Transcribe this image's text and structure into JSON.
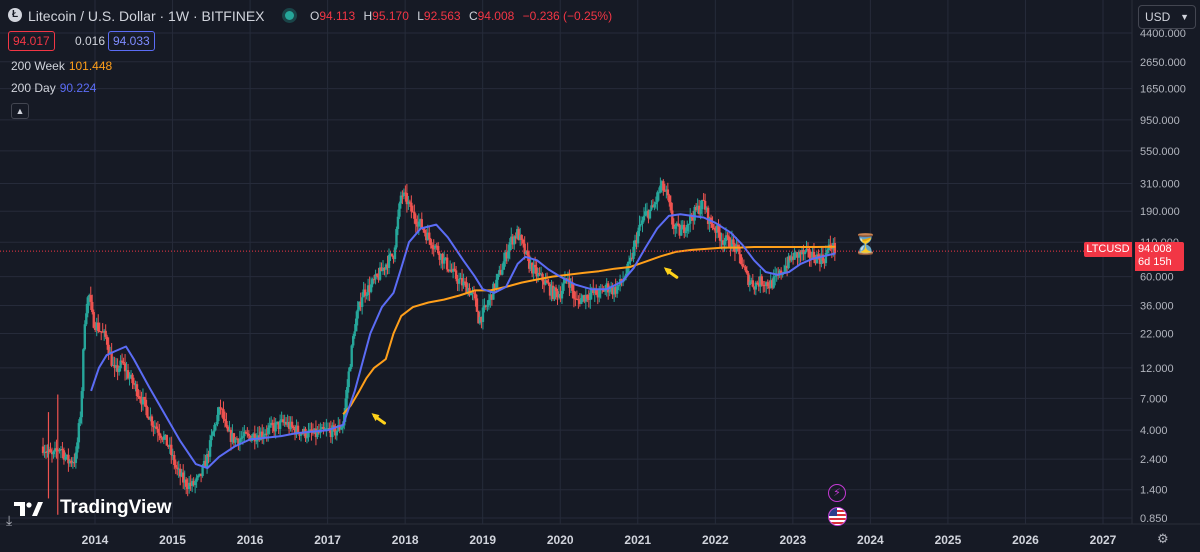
{
  "header": {
    "logo_letter": "Ł",
    "title": "Litecoin / U.S. Dollar · 1W · BITFINEX",
    "ohlc": [
      {
        "key": "O",
        "value": "94.113"
      },
      {
        "key": "H",
        "value": "95.170"
      },
      {
        "key": "L",
        "value": "92.563"
      },
      {
        "key": "C",
        "value": "94.008"
      },
      {
        "key": "",
        "value": "−0.236 (−0.25%)"
      }
    ],
    "bid": "94.017",
    "spread": "0.016",
    "ask": "94.033"
  },
  "indicators": [
    {
      "name": "200 Week",
      "value": "101.448",
      "color": "#ff9f1a"
    },
    {
      "name": "200 Day",
      "value": "90.224",
      "color": "#5b6cf5"
    }
  ],
  "currency": {
    "label": "USD"
  },
  "last_price": {
    "symbol": "LTCUSD",
    "price": "94.008",
    "countdown": "6d 15h",
    "color": "#f23645"
  },
  "brand": {
    "name": "TradingView"
  },
  "colors": {
    "background": "#161a25",
    "grid": "#262b3a",
    "up": "#26a69a",
    "down": "#ef5350",
    "ma200w": "#ff9f1a",
    "ma200d": "#5b6cf5",
    "arrow": "#ffd21a"
  },
  "chart_data": {
    "type": "candlestick",
    "y_scale": "log",
    "ylim": [
      0.72,
      5400
    ],
    "xlim": [
      2013.25,
      2027.6
    ],
    "y_ticks": [
      "4400.000",
      "2650.000",
      "1650.000",
      "950.000",
      "550.000",
      "310.000",
      "190.000",
      "110.000",
      "60.000",
      "36.000",
      "22.000",
      "12.000",
      "7.000",
      "4.000",
      "2.400",
      "1.400",
      "0.850"
    ],
    "x_ticks": [
      "2014",
      "2015",
      "2016",
      "2017",
      "2018",
      "2019",
      "2020",
      "2021",
      "2022",
      "2023",
      "2024",
      "2025",
      "2026",
      "2027"
    ],
    "price_path": [
      [
        2013.33,
        3.0
      ],
      [
        2013.45,
        2.5
      ],
      [
        2013.55,
        3.0
      ],
      [
        2013.65,
        2.3
      ],
      [
        2013.75,
        2.4
      ],
      [
        2013.82,
        6
      ],
      [
        2013.87,
        30
      ],
      [
        2013.92,
        45
      ],
      [
        2013.97,
        28
      ],
      [
        2014.05,
        24
      ],
      [
        2014.15,
        20
      ],
      [
        2014.25,
        11
      ],
      [
        2014.35,
        13
      ],
      [
        2014.45,
        10
      ],
      [
        2014.55,
        8
      ],
      [
        2014.65,
        6
      ],
      [
        2014.75,
        4.5
      ],
      [
        2014.85,
        3.8
      ],
      [
        2014.95,
        3.0
      ],
      [
        2015.05,
        2.0
      ],
      [
        2015.15,
        1.6
      ],
      [
        2015.25,
        1.5
      ],
      [
        2015.35,
        1.7
      ],
      [
        2015.45,
        2.5
      ],
      [
        2015.55,
        4.5
      ],
      [
        2015.62,
        6
      ],
      [
        2015.7,
        3.8
      ],
      [
        2015.8,
        3.4
      ],
      [
        2015.9,
        3.5
      ],
      [
        2016.0,
        3.6
      ],
      [
        2016.15,
        3.8
      ],
      [
        2016.3,
        4.2
      ],
      [
        2016.45,
        4.6
      ],
      [
        2016.55,
        4.1
      ],
      [
        2016.7,
        3.8
      ],
      [
        2016.85,
        3.7
      ],
      [
        2017.0,
        4.0
      ],
      [
        2017.1,
        3.9
      ],
      [
        2017.2,
        4.5
      ],
      [
        2017.28,
        12
      ],
      [
        2017.35,
        25
      ],
      [
        2017.45,
        45
      ],
      [
        2017.55,
        50
      ],
      [
        2017.65,
        60
      ],
      [
        2017.75,
        75
      ],
      [
        2017.85,
        90
      ],
      [
        2017.95,
        260
      ],
      [
        2018.02,
        230
      ],
      [
        2018.1,
        180
      ],
      [
        2018.2,
        150
      ],
      [
        2018.3,
        120
      ],
      [
        2018.4,
        100
      ],
      [
        2018.5,
        80
      ],
      [
        2018.6,
        65
      ],
      [
        2018.7,
        55
      ],
      [
        2018.8,
        50
      ],
      [
        2018.9,
        40
      ],
      [
        2018.95,
        28
      ],
      [
        2019.05,
        35
      ],
      [
        2019.15,
        50
      ],
      [
        2019.25,
        70
      ],
      [
        2019.35,
        110
      ],
      [
        2019.45,
        130
      ],
      [
        2019.52,
        100
      ],
      [
        2019.6,
        75
      ],
      [
        2019.7,
        62
      ],
      [
        2019.8,
        55
      ],
      [
        2019.9,
        45
      ],
      [
        2020.0,
        45
      ],
      [
        2020.1,
        60
      ],
      [
        2020.2,
        38
      ],
      [
        2020.3,
        42
      ],
      [
        2020.4,
        45
      ],
      [
        2020.5,
        44
      ],
      [
        2020.6,
        50
      ],
      [
        2020.7,
        47
      ],
      [
        2020.8,
        55
      ],
      [
        2020.9,
        75
      ],
      [
        2021.0,
        130
      ],
      [
        2021.1,
        180
      ],
      [
        2021.2,
        200
      ],
      [
        2021.3,
        300
      ],
      [
        2021.38,
        250
      ],
      [
        2021.45,
        150
      ],
      [
        2021.55,
        130
      ],
      [
        2021.65,
        160
      ],
      [
        2021.75,
        190
      ],
      [
        2021.85,
        220
      ],
      [
        2021.92,
        160
      ],
      [
        2022.0,
        140
      ],
      [
        2022.1,
        115
      ],
      [
        2022.2,
        110
      ],
      [
        2022.3,
        90
      ],
      [
        2022.4,
        60
      ],
      [
        2022.5,
        52
      ],
      [
        2022.6,
        56
      ],
      [
        2022.7,
        52
      ],
      [
        2022.8,
        58
      ],
      [
        2022.9,
        72
      ],
      [
        2023.0,
        85
      ],
      [
        2023.1,
        90
      ],
      [
        2023.2,
        88
      ],
      [
        2023.3,
        85
      ],
      [
        2023.4,
        82
      ],
      [
        2023.45,
        95
      ],
      [
        2023.5,
        105
      ],
      [
        2023.55,
        94
      ]
    ],
    "series": [
      {
        "name": "200 Week",
        "type": "line",
        "color": "#ff9f1a",
        "points": [
          [
            2017.2,
            5.3
          ],
          [
            2017.3,
            6.2
          ],
          [
            2017.4,
            7.8
          ],
          [
            2017.5,
            10
          ],
          [
            2017.6,
            12
          ],
          [
            2017.75,
            14
          ],
          [
            2017.85,
            22
          ],
          [
            2017.95,
            30
          ],
          [
            2018.1,
            35
          ],
          [
            2018.3,
            38
          ],
          [
            2018.5,
            40
          ],
          [
            2018.7,
            43
          ],
          [
            2018.9,
            47
          ],
          [
            2019.1,
            47
          ],
          [
            2019.3,
            50
          ],
          [
            2019.5,
            54
          ],
          [
            2019.7,
            57
          ],
          [
            2019.9,
            60
          ],
          [
            2020.1,
            62
          ],
          [
            2020.3,
            64
          ],
          [
            2020.5,
            66
          ],
          [
            2020.7,
            69
          ],
          [
            2020.9,
            71
          ],
          [
            2021.1,
            78
          ],
          [
            2021.3,
            86
          ],
          [
            2021.5,
            93
          ],
          [
            2021.7,
            96
          ],
          [
            2021.9,
            98
          ],
          [
            2022.1,
            100
          ],
          [
            2022.3,
            100
          ],
          [
            2022.5,
            101
          ],
          [
            2022.7,
            101
          ],
          [
            2022.9,
            101
          ],
          [
            2023.1,
            101
          ],
          [
            2023.3,
            101
          ],
          [
            2023.55,
            101.448
          ]
        ]
      },
      {
        "name": "200 Day",
        "type": "line",
        "color": "#5b6cf5",
        "points": [
          [
            2013.95,
            8
          ],
          [
            2014.05,
            12
          ],
          [
            2014.15,
            15
          ],
          [
            2014.25,
            16
          ],
          [
            2014.4,
            17.5
          ],
          [
            2014.5,
            14
          ],
          [
            2014.7,
            8.5
          ],
          [
            2014.9,
            5.3
          ],
          [
            2015.1,
            3.3
          ],
          [
            2015.3,
            2.2
          ],
          [
            2015.45,
            2.05
          ],
          [
            2015.6,
            2.5
          ],
          [
            2015.8,
            3.0
          ],
          [
            2016.0,
            3.4
          ],
          [
            2016.2,
            3.5
          ],
          [
            2016.4,
            3.6
          ],
          [
            2016.6,
            3.8
          ],
          [
            2016.8,
            3.9
          ],
          [
            2017.0,
            4.0
          ],
          [
            2017.2,
            4.4
          ],
          [
            2017.35,
            8
          ],
          [
            2017.55,
            22
          ],
          [
            2017.7,
            35
          ],
          [
            2017.85,
            45
          ],
          [
            2017.95,
            70
          ],
          [
            2018.05,
            110
          ],
          [
            2018.2,
            140
          ],
          [
            2018.4,
            150
          ],
          [
            2018.55,
            120
          ],
          [
            2018.75,
            80
          ],
          [
            2018.9,
            60
          ],
          [
            2019.0,
            48
          ],
          [
            2019.15,
            45
          ],
          [
            2019.3,
            50
          ],
          [
            2019.45,
            75
          ],
          [
            2019.55,
            85
          ],
          [
            2019.7,
            80
          ],
          [
            2019.85,
            68
          ],
          [
            2020.0,
            60
          ],
          [
            2020.2,
            52
          ],
          [
            2020.4,
            48
          ],
          [
            2020.6,
            48
          ],
          [
            2020.8,
            55
          ],
          [
            2020.95,
            70
          ],
          [
            2021.1,
            100
          ],
          [
            2021.25,
            140
          ],
          [
            2021.4,
            175
          ],
          [
            2021.55,
            180
          ],
          [
            2021.7,
            175
          ],
          [
            2021.85,
            170
          ],
          [
            2022.0,
            155
          ],
          [
            2022.2,
            130
          ],
          [
            2022.35,
            105
          ],
          [
            2022.5,
            80
          ],
          [
            2022.65,
            65
          ],
          [
            2022.8,
            62
          ],
          [
            2022.95,
            65
          ],
          [
            2023.1,
            75
          ],
          [
            2023.25,
            82
          ],
          [
            2023.4,
            86
          ],
          [
            2023.55,
            90.224
          ]
        ]
      }
    ],
    "annotations": [
      {
        "type": "arrow",
        "at": [
          2017.45,
          5.5
        ]
      },
      {
        "type": "arrow",
        "at": [
          2021.22,
          72
        ]
      }
    ],
    "last_price_line": 94.008,
    "grid": true
  }
}
